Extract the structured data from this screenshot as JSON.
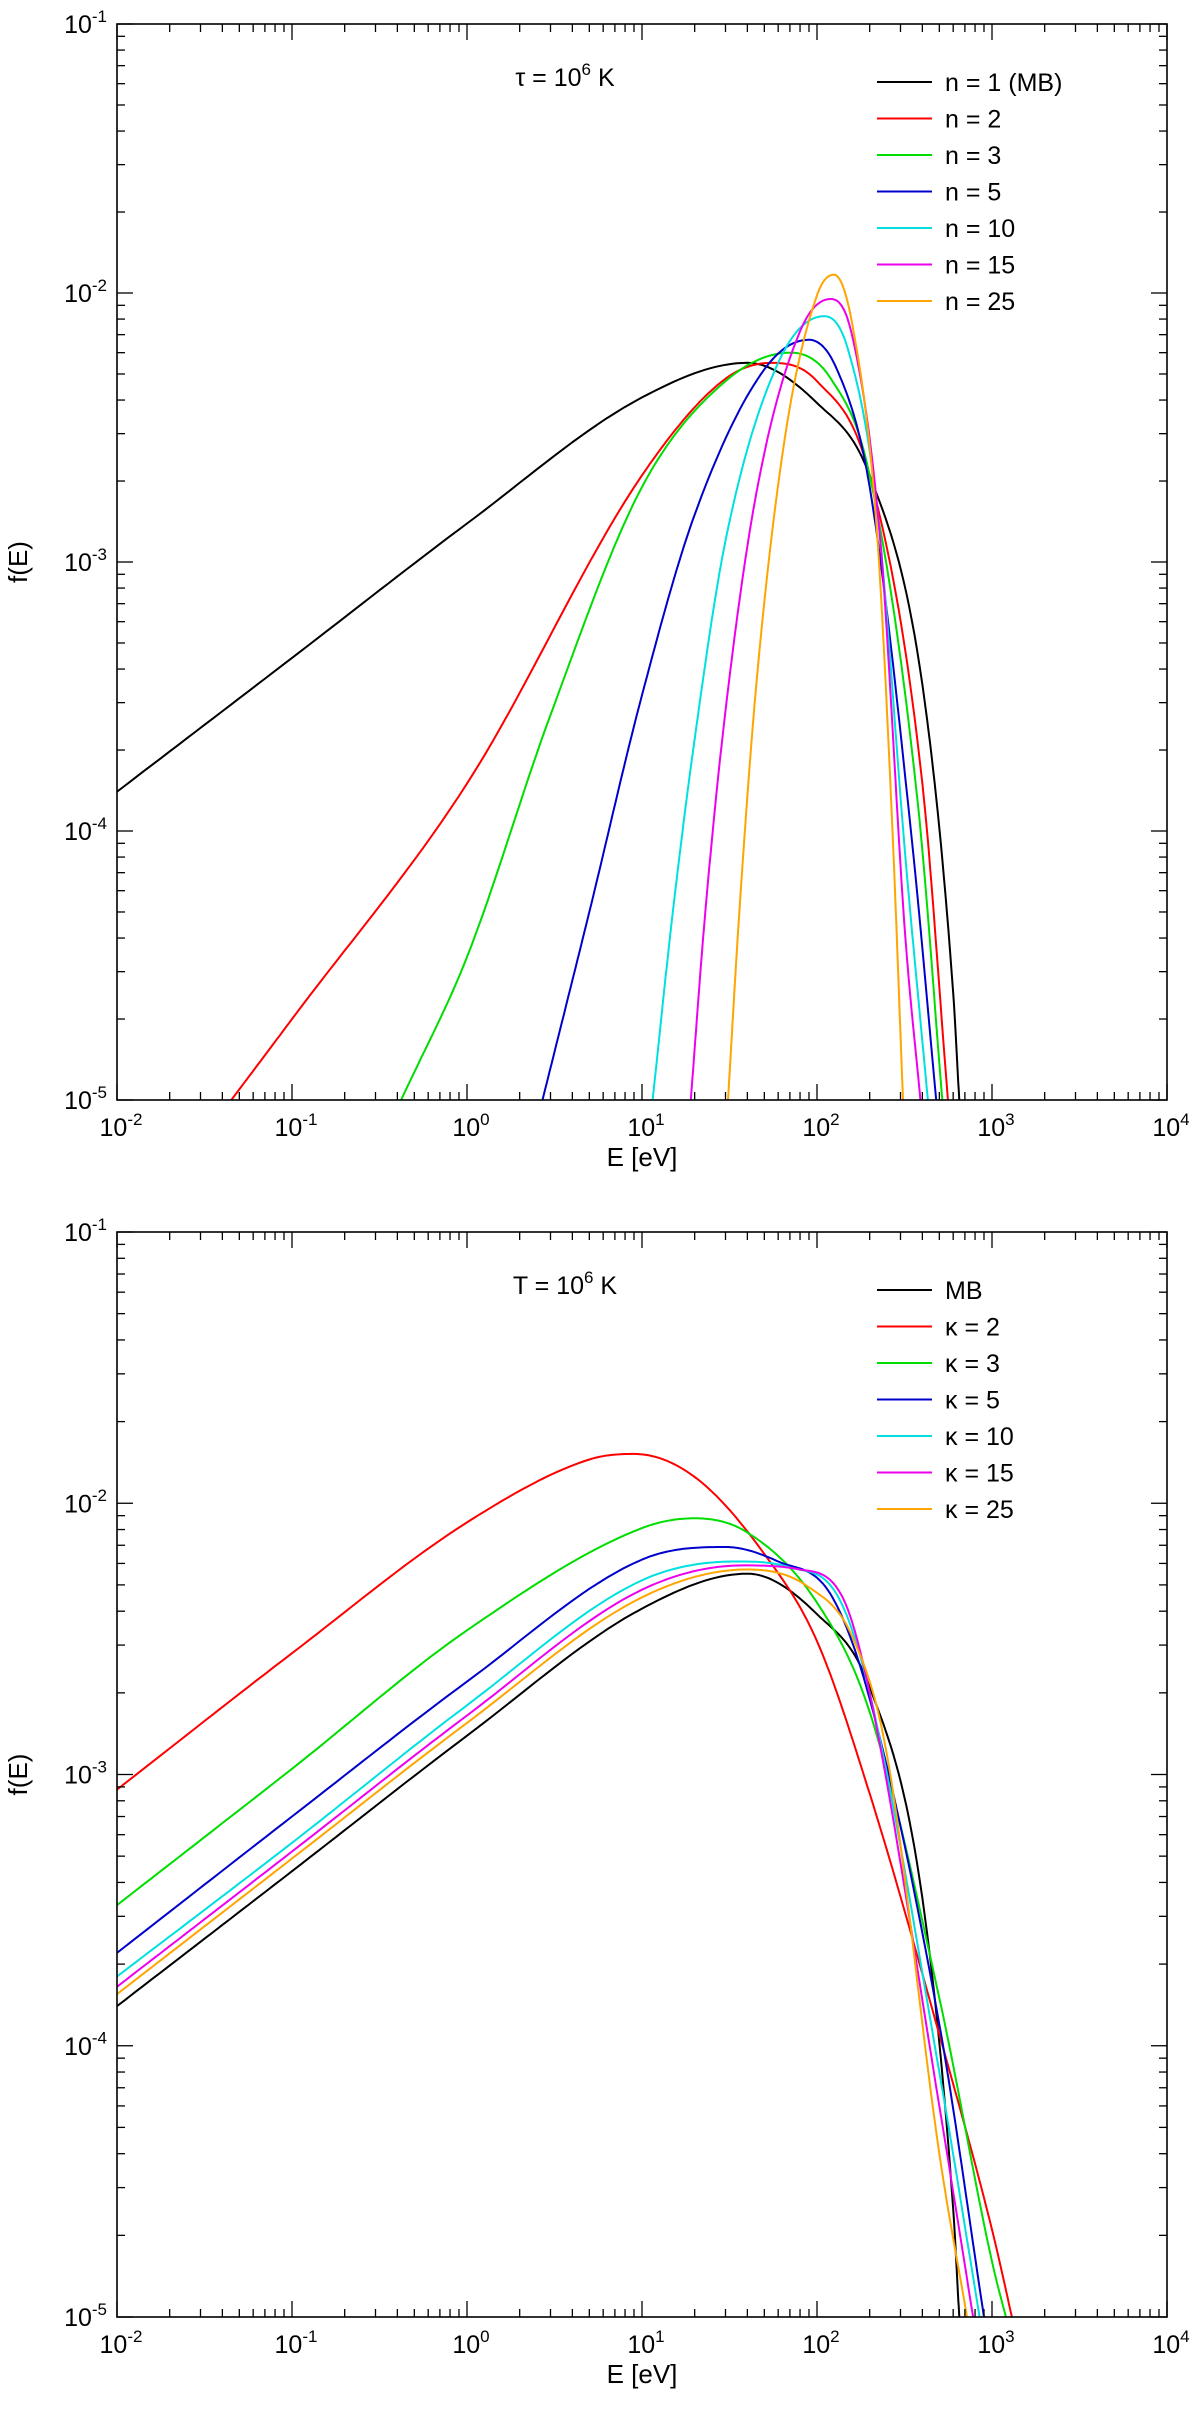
{
  "chart_data": [
    {
      "type": "line",
      "xscale": "log",
      "yscale": "log",
      "xlim": [
        0.01,
        10000
      ],
      "ylim": [
        1e-05,
        0.1
      ],
      "xlabel": "E [eV]",
      "ylabel": "f(E)",
      "x_ticks": [
        {
          "base": "10",
          "exp": "-2"
        },
        {
          "base": "10",
          "exp": "-1"
        },
        {
          "base": "10",
          "exp": "0"
        },
        {
          "base": "10",
          "exp": "1"
        },
        {
          "base": "10",
          "exp": "2"
        },
        {
          "base": "10",
          "exp": "3"
        },
        {
          "base": "10",
          "exp": "4"
        }
      ],
      "y_ticks": [
        {
          "base": "10",
          "exp": "-5"
        },
        {
          "base": "10",
          "exp": "-4"
        },
        {
          "base": "10",
          "exp": "-3"
        },
        {
          "base": "10",
          "exp": "-2"
        },
        {
          "base": "10",
          "exp": "-1"
        }
      ],
      "annotation": {
        "symbol": "τ",
        "pre": " = 10",
        "sup": "6",
        "post": " K"
      },
      "legend_position": "top-right",
      "series": [
        {
          "name": "n = 1 (MB)",
          "color": "#000000",
          "points": [
            [
              0.01,
              0.00014
            ],
            [
              0.1,
              0.00044
            ],
            [
              1,
              0.00139
            ],
            [
              10,
              0.00409
            ],
            [
              40,
              0.0055
            ],
            [
              100,
              0.0039
            ],
            [
              200,
              0.0021
            ],
            [
              400,
              0.00035
            ],
            [
              600,
              2.5e-05
            ],
            [
              650,
              1e-05
            ]
          ]
        },
        {
          "name": "n = 2",
          "color": "#ff0000",
          "points": [
            [
              0.045,
              1e-05
            ],
            [
              0.1,
              2e-05
            ],
            [
              1,
              0.00015
            ],
            [
              10,
              0.0021
            ],
            [
              30,
              0.0048
            ],
            [
              55,
              0.0055
            ],
            [
              100,
              0.0047
            ],
            [
              200,
              0.0021
            ],
            [
              400,
              0.00015
            ],
            [
              560,
              1e-05
            ]
          ]
        },
        {
          "name": "n = 3",
          "color": "#00dd00",
          "points": [
            [
              0.42,
              1e-05
            ],
            [
              1,
              3.4e-05
            ],
            [
              3,
              0.00027
            ],
            [
              10,
              0.0019
            ],
            [
              30,
              0.0047
            ],
            [
              70,
              0.006
            ],
            [
              120,
              0.0048
            ],
            [
              200,
              0.0021
            ],
            [
              380,
              0.00012
            ],
            [
              520,
              1e-05
            ]
          ]
        },
        {
          "name": "n = 5",
          "color": "#0000cc",
          "points": [
            [
              2.7,
              1e-05
            ],
            [
              5,
              5e-05
            ],
            [
              10,
              0.00032
            ],
            [
              20,
              0.0015
            ],
            [
              50,
              0.0052
            ],
            [
              90,
              0.0067
            ],
            [
              130,
              0.0052
            ],
            [
              200,
              0.0019
            ],
            [
              350,
              9e-05
            ],
            [
              480,
              1e-05
            ]
          ]
        },
        {
          "name": "n = 10",
          "color": "#00e0e0",
          "points": [
            [
              11.5,
              1e-05
            ],
            [
              15,
              5e-05
            ],
            [
              20,
              0.00022
            ],
            [
              30,
              0.0012
            ],
            [
              60,
              0.0055
            ],
            [
              110,
              0.0082
            ],
            [
              150,
              0.0062
            ],
            [
              220,
              0.0016
            ],
            [
              320,
              8e-05
            ],
            [
              430,
              1e-05
            ]
          ]
        },
        {
          "name": "n = 15",
          "color": "#ee00ee",
          "points": [
            [
              19,
              1e-05
            ],
            [
              23,
              5e-05
            ],
            [
              30,
              0.00028
            ],
            [
              45,
              0.0018
            ],
            [
              80,
              0.0072
            ],
            [
              120,
              0.0095
            ],
            [
              160,
              0.0068
            ],
            [
              230,
              0.0012
            ],
            [
              320,
              4e-05
            ],
            [
              390,
              1e-05
            ]
          ]
        },
        {
          "name": "n = 25",
          "color": "#ffa500",
          "points": [
            [
              31,
              1e-05
            ],
            [
              36,
              5e-05
            ],
            [
              45,
              0.00035
            ],
            [
              65,
              0.0028
            ],
            [
              100,
              0.0098
            ],
            [
              125,
              0.0117
            ],
            [
              160,
              0.0075
            ],
            [
              220,
              0.0013
            ],
            [
              270,
              0.0001
            ],
            [
              310,
              1e-05
            ]
          ]
        }
      ]
    },
    {
      "type": "line",
      "xscale": "log",
      "yscale": "log",
      "xlim": [
        0.01,
        10000
      ],
      "ylim": [
        1e-05,
        0.1
      ],
      "xlabel": "E [eV]",
      "ylabel": "f(E)",
      "x_ticks": [
        {
          "base": "10",
          "exp": "-2"
        },
        {
          "base": "10",
          "exp": "-1"
        },
        {
          "base": "10",
          "exp": "0"
        },
        {
          "base": "10",
          "exp": "1"
        },
        {
          "base": "10",
          "exp": "2"
        },
        {
          "base": "10",
          "exp": "3"
        },
        {
          "base": "10",
          "exp": "4"
        }
      ],
      "y_ticks": [
        {
          "base": "10",
          "exp": "-5"
        },
        {
          "base": "10",
          "exp": "-4"
        },
        {
          "base": "10",
          "exp": "-3"
        },
        {
          "base": "10",
          "exp": "-2"
        },
        {
          "base": "10",
          "exp": "-1"
        }
      ],
      "annotation": {
        "symbol": "",
        "pre": "T = 10",
        "sup": "6",
        "post": " K"
      },
      "legend_position": "top-right",
      "series": [
        {
          "name": "MB",
          "color": "#000000",
          "points": [
            [
              0.01,
              0.00014
            ],
            [
              0.1,
              0.00044
            ],
            [
              1,
              0.00139
            ],
            [
              10,
              0.00409
            ],
            [
              40,
              0.0055
            ],
            [
              100,
              0.0039
            ],
            [
              200,
              0.0021
            ],
            [
              400,
              0.00035
            ],
            [
              600,
              2.5e-05
            ],
            [
              650,
              1e-05
            ]
          ]
        },
        {
          "name": "κ = 2",
          "color": "#ff0000",
          "points": [
            [
              0.01,
              0.00088
            ],
            [
              0.1,
              0.0028
            ],
            [
              1,
              0.0085
            ],
            [
              5,
              0.0145
            ],
            [
              9,
              0.0152
            ],
            [
              20,
              0.0125
            ],
            [
              50,
              0.0065
            ],
            [
              100,
              0.0031
            ],
            [
              200,
              0.00085
            ],
            [
              500,
              0.00011
            ],
            [
              1000,
              2.1e-05
            ],
            [
              1300,
              1e-05
            ]
          ]
        },
        {
          "name": "κ = 3",
          "color": "#00dd00",
          "points": [
            [
              0.01,
              0.00033
            ],
            [
              0.1,
              0.00105
            ],
            [
              1,
              0.0034
            ],
            [
              10,
              0.0081
            ],
            [
              20,
              0.0088
            ],
            [
              40,
              0.0078
            ],
            [
              100,
              0.0043
            ],
            [
              200,
              0.0017
            ],
            [
              500,
              0.00015
            ],
            [
              1000,
              1.6e-05
            ],
            [
              1200,
              1e-05
            ]
          ]
        },
        {
          "name": "κ = 5",
          "color": "#0000cc",
          "points": [
            [
              0.01,
              0.00022
            ],
            [
              0.1,
              0.0007
            ],
            [
              1,
              0.0022
            ],
            [
              10,
              0.0062
            ],
            [
              30,
              0.0069
            ],
            [
              60,
              0.0061
            ],
            [
              120,
              0.0046
            ],
            [
              200,
              0.0019
            ],
            [
              500,
              0.00012
            ],
            [
              900,
              1e-05
            ]
          ]
        },
        {
          "name": "κ = 10",
          "color": "#00e0e0",
          "points": [
            [
              0.01,
              0.00018
            ],
            [
              0.1,
              0.00056
            ],
            [
              1,
              0.0018
            ],
            [
              10,
              0.0052
            ],
            [
              35,
              0.0061
            ],
            [
              70,
              0.0058
            ],
            [
              130,
              0.0046
            ],
            [
              200,
              0.002
            ],
            [
              500,
              8e-05
            ],
            [
              850,
              1e-05
            ]
          ]
        },
        {
          "name": "κ = 15",
          "color": "#ee00ee",
          "points": [
            [
              0.01,
              0.000165
            ],
            [
              0.1,
              0.00052
            ],
            [
              1,
              0.00165
            ],
            [
              10,
              0.0048
            ],
            [
              38,
              0.0059
            ],
            [
              80,
              0.0057
            ],
            [
              140,
              0.0045
            ],
            [
              200,
              0.002
            ],
            [
              500,
              6e-05
            ],
            [
              780,
              1e-05
            ]
          ]
        },
        {
          "name": "κ = 25",
          "color": "#ffa500",
          "points": [
            [
              0.01,
              0.000155
            ],
            [
              0.1,
              0.00049
            ],
            [
              1,
              0.00155
            ],
            [
              10,
              0.0045
            ],
            [
              40,
              0.0057
            ],
            [
              90,
              0.0049
            ],
            [
              160,
              0.0032
            ],
            [
              250,
              0.0012
            ],
            [
              500,
              4e-05
            ],
            [
              720,
              1e-05
            ]
          ]
        }
      ]
    }
  ]
}
